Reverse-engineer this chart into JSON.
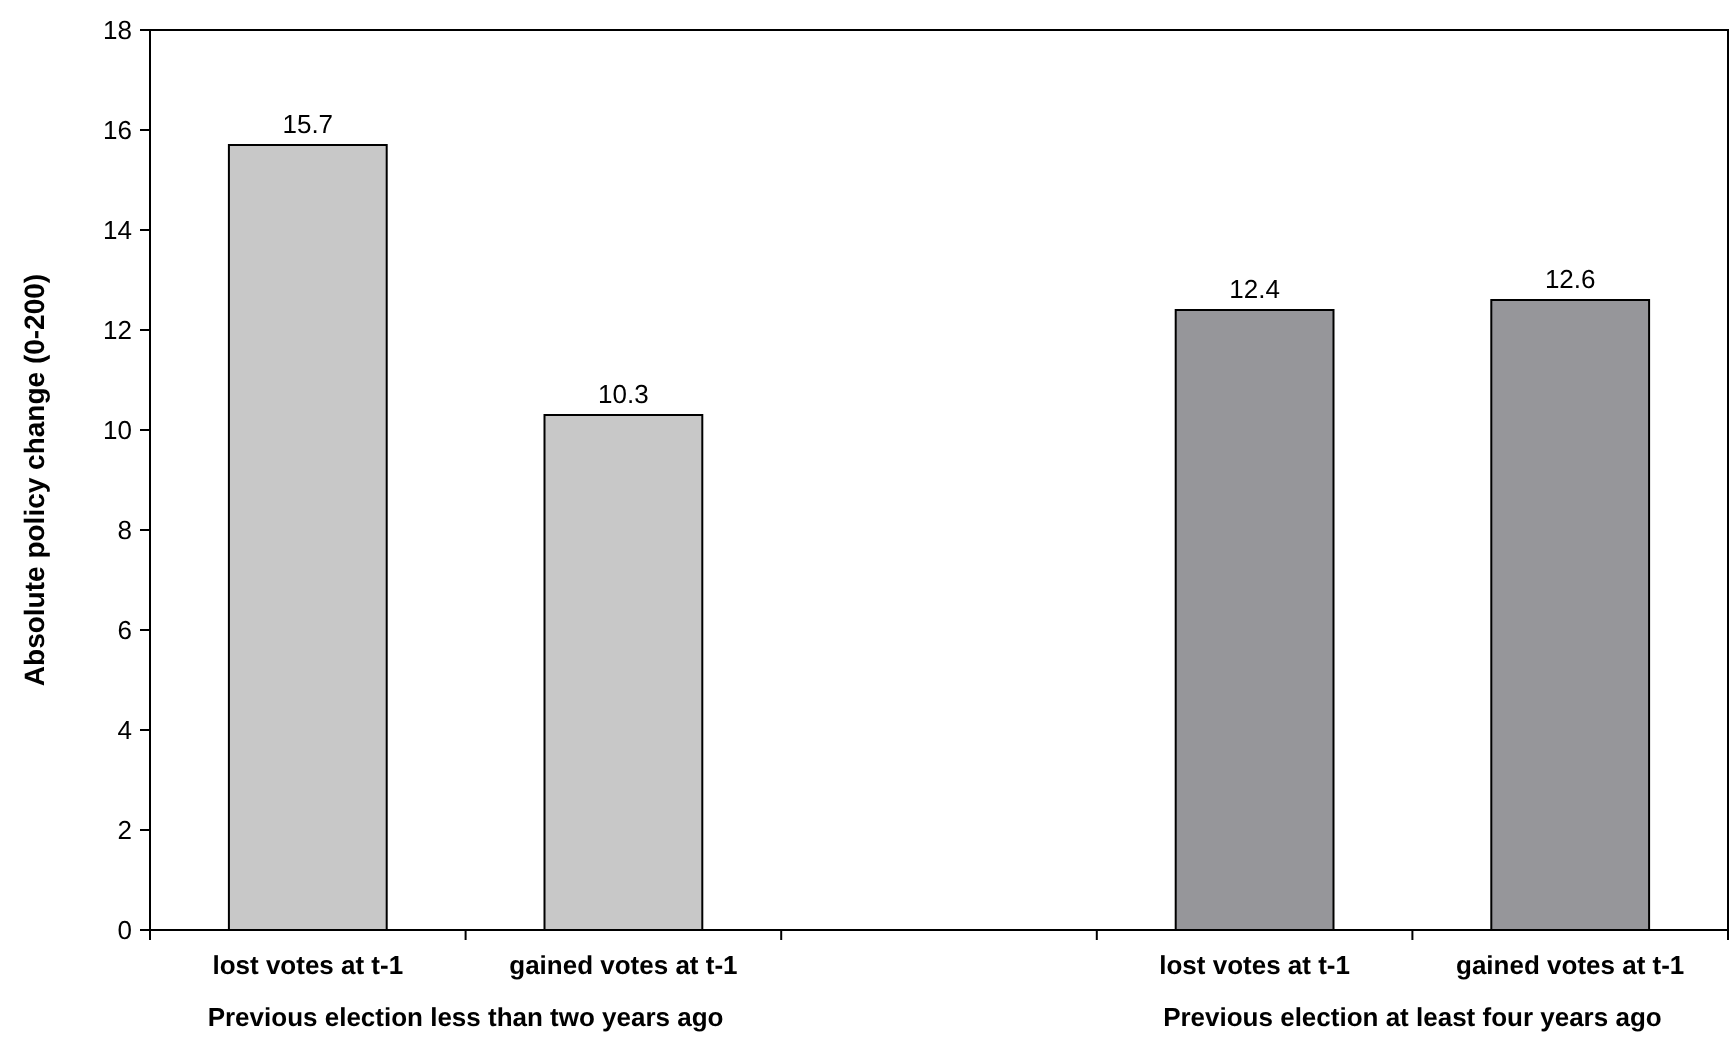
{
  "chart_data": {
    "type": "bar",
    "ylabel": "Absolute policy change (0-200)",
    "categories": [
      "lost votes at t-1",
      "gained votes at t-1",
      null,
      "lost votes at t-1",
      "gained votes at t-1"
    ],
    "values": [
      15.7,
      10.3,
      null,
      12.4,
      12.6
    ],
    "colors": [
      "#c8c8c8",
      "#c8c8c8",
      null,
      "#96969a",
      "#96969a"
    ],
    "ylim": [
      0,
      18
    ],
    "yticks": [
      0,
      2,
      4,
      6,
      8,
      10,
      12,
      14,
      16,
      18
    ],
    "grid": false,
    "data_labels": true,
    "annotations": [
      "Previous election less than two years ago",
      "Previous election at least four years ago"
    ]
  }
}
